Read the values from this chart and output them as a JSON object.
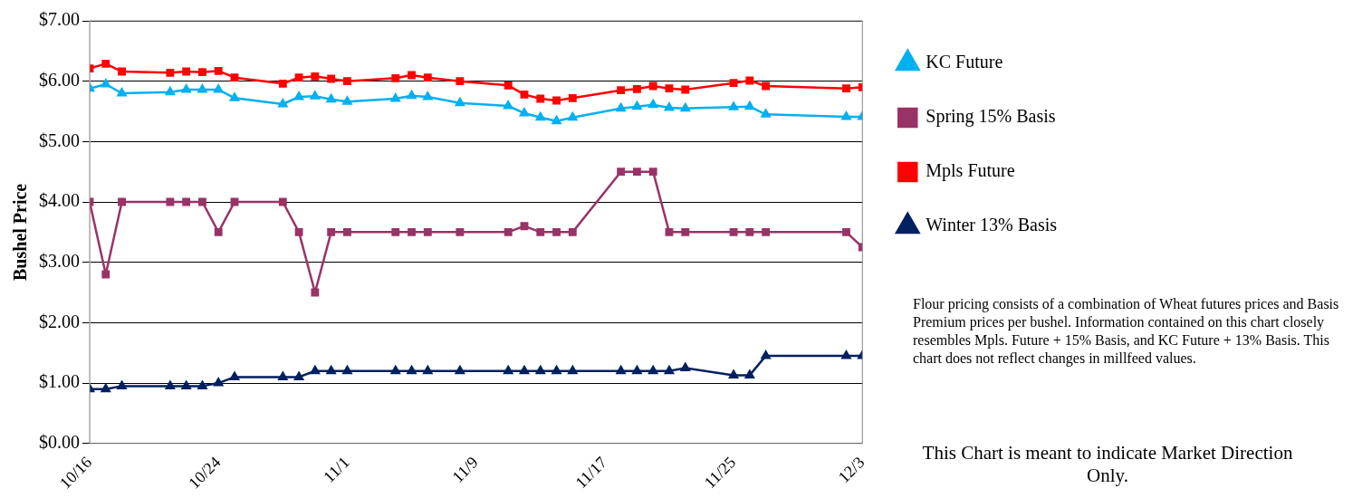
{
  "chart_data": {
    "type": "line",
    "ylabel": "Bushel Price",
    "x": [
      "--10-16",
      "--10-17",
      "--10-18",
      "--10-21",
      "--10-22",
      "--10-23",
      "--10-24",
      "--10-25",
      "--10-28",
      "--10-29",
      "--10-30",
      "--10-31",
      "--11-01",
      "--11-04",
      "--11-05",
      "--11-06",
      "--11-08",
      "--11-11",
      "--11-12",
      "--11-13",
      "--11-14",
      "--11-15",
      "--11-18",
      "--11-19",
      "--11-20",
      "--11-21",
      "--11-22",
      "--11-25",
      "--11-26",
      "--11-27",
      "--12-02",
      "--12-03"
    ],
    "series": [
      {
        "name": "KC Future",
        "color": "#00b0f0",
        "marker": "triangle",
        "values": [
          5.88,
          5.95,
          5.8,
          5.82,
          5.86,
          5.86,
          5.86,
          5.72,
          5.62,
          5.74,
          5.75,
          5.7,
          5.66,
          5.71,
          5.76,
          5.74,
          5.64,
          5.59,
          5.47,
          5.4,
          5.34,
          5.4,
          5.55,
          5.58,
          5.61,
          5.56,
          5.55,
          5.57,
          5.58,
          5.45,
          5.41,
          5.41
        ]
      },
      {
        "name": "Spring 15% Basis",
        "color": "#993366",
        "marker": "square",
        "values": [
          4.0,
          2.8,
          4.0,
          4.0,
          4.0,
          4.0,
          3.5,
          4.0,
          4.0,
          3.5,
          2.5,
          3.5,
          3.5,
          3.5,
          3.5,
          3.5,
          3.5,
          3.5,
          3.6,
          3.5,
          3.5,
          3.5,
          4.5,
          4.5,
          4.5,
          3.5,
          3.5,
          3.5,
          3.5,
          3.5,
          3.5,
          3.25
        ]
      },
      {
        "name": "Mpls Future",
        "color": "#ff0000",
        "marker": "square",
        "values": [
          6.21,
          6.29,
          6.16,
          6.14,
          6.16,
          6.15,
          6.17,
          6.06,
          5.96,
          6.06,
          6.08,
          6.04,
          6.0,
          6.05,
          6.1,
          6.06,
          6.0,
          5.93,
          5.78,
          5.71,
          5.68,
          5.72,
          5.85,
          5.87,
          5.92,
          5.88,
          5.86,
          5.97,
          6.01,
          5.92,
          5.88,
          5.9
        ]
      },
      {
        "name": "Winter 13% Basis",
        "color": "#002060",
        "marker": "triangle",
        "values": [
          0.9,
          0.9,
          0.95,
          0.95,
          0.95,
          0.95,
          1.0,
          1.1,
          1.1,
          1.1,
          1.2,
          1.2,
          1.2,
          1.2,
          1.2,
          1.2,
          1.2,
          1.2,
          1.2,
          1.2,
          1.2,
          1.2,
          1.2,
          1.2,
          1.2,
          1.2,
          1.25,
          1.13,
          1.13,
          1.45,
          1.45,
          1.45
        ]
      }
    ],
    "xlim": [
      "--10-16",
      "--12-03"
    ],
    "xticks": [
      {
        "value": "--10-16",
        "label": "10/16"
      },
      {
        "value": "--10-24",
        "label": "10/24"
      },
      {
        "value": "--11-01",
        "label": "11/1"
      },
      {
        "value": "--11-09",
        "label": "11/9"
      },
      {
        "value": "--11-17",
        "label": "11/17"
      },
      {
        "value": "--11-25",
        "label": "11/25"
      },
      {
        "value": "--12-03",
        "label": "12/3"
      }
    ],
    "ylim": [
      0,
      7
    ],
    "yticks": [
      {
        "value": 0,
        "label": "$0.00"
      },
      {
        "value": 1,
        "label": "$1.00"
      },
      {
        "value": 2,
        "label": "$2.00"
      },
      {
        "value": 3,
        "label": "$3.00"
      },
      {
        "value": 4,
        "label": "$4.00"
      },
      {
        "value": 5,
        "label": "$5.00"
      },
      {
        "value": 6,
        "label": "$6.00"
      },
      {
        "value": 7,
        "label": "$7.00"
      }
    ],
    "grid": "y",
    "legend": "right",
    "line_style": "solid",
    "annotations": [
      "Flour pricing consists of a combination of Wheat futures prices and Basis Premium prices per bushel. Information contained on this chart closely resembles Mpls. Future + 15% Basis, and KC Future + 13% Basis. This chart does not reflect changes in millfeed values.",
      "This Chart is meant to indicate Market Direction Only."
    ]
  }
}
